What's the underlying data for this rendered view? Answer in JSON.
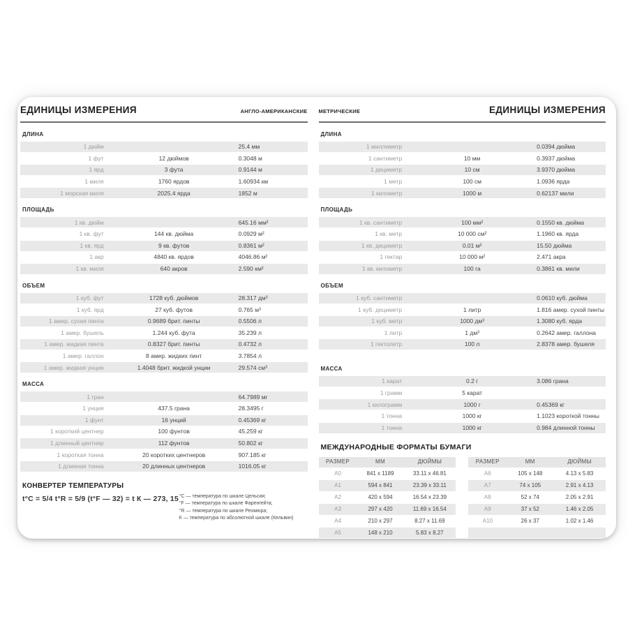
{
  "left": {
    "title": "ЕДИНИЦЫ ИЗМЕРЕНИЯ",
    "subtitle": "АНГЛО-АМЕРИКАНСКИЕ",
    "length": {
      "label": "ДЛИНА",
      "rows": [
        [
          "1 дюйм",
          "",
          "25.4 мм"
        ],
        [
          "1 фут",
          "12 дюймов",
          "0.3048 м"
        ],
        [
          "1 ярд",
          "3 фута",
          "0.9144 м"
        ],
        [
          "1 миля",
          "1760 ярдов",
          "1.60934 км"
        ],
        [
          "1 морская миля",
          "2025.4 ярда",
          "1852 м"
        ]
      ]
    },
    "area": {
      "label": "ПЛОЩАДЬ",
      "rows": [
        [
          "1 кв. дюйм",
          "",
          "645.16 мм²"
        ],
        [
          "1 кв. фут",
          "144 кв. дюйма",
          "0.0929 м²"
        ],
        [
          "1 кв. ярд",
          "9 кв. футов",
          "0.8361 м²"
        ],
        [
          "1 акр",
          "4840 кв. ярдов",
          "4046.86 м²"
        ],
        [
          "1 кв. миля",
          "640 акров",
          "2.590 км²"
        ]
      ]
    },
    "volume": {
      "label": "ОБЪЕМ",
      "rows": [
        [
          "1 куб. фут",
          "1728 куб. дюймов",
          "28.317 дм³"
        ],
        [
          "1 куб. ярд",
          "27 куб. футов",
          "0.765 м³"
        ],
        [
          "1 амер. сухая пинта",
          "0.9689 брит. пинты",
          "0.5506 л"
        ],
        [
          "1 амер. бушель",
          "1.244 куб. фута",
          "35.239 л"
        ],
        [
          "1 амер. жидкая пинта",
          "0.8327 брит. пинты",
          "0.4732 л"
        ],
        [
          "1 амер. галлон",
          "8 амер. жидких пинт",
          "3.7854 л"
        ],
        [
          "1 амер. жидкая унция",
          "1.4048 брит. жидкой унции",
          "29.574 см³"
        ]
      ]
    },
    "mass": {
      "label": "МАССА",
      "rows": [
        [
          "1 гран",
          "",
          "64.7989 мг"
        ],
        [
          "1 унция",
          "437.5 грана",
          "28.3495 г"
        ],
        [
          "1 фунт",
          "16 унций",
          "0.45369 кг"
        ],
        [
          "1 короткий центнер",
          "100 фунтов",
          "45.259 кг"
        ],
        [
          "1 длинный центнер",
          "112 фунтов",
          "50.802 кг"
        ],
        [
          "1 короткая тонна",
          "20 коротких центнеров",
          "907.185 кг"
        ],
        [
          "1 длинная тонна",
          "20 длинных центнеров",
          "1016.05 кг"
        ]
      ]
    },
    "temperature": {
      "heading": "КОНВЕРТЕР ТЕМПЕРАТУРЫ",
      "formula": "t°C = 5/4 t°R = 5/9 (t°F — 32) = t К — 273, 15",
      "notes": [
        "°C — температура по шкале Цельсия;",
        "°F — температура по шкале Фаренгейта;",
        "°R — температура по шкале Реомюра;",
        "К — температура по абсолютной шкале (Кельвин)"
      ]
    }
  },
  "right": {
    "label_small": "МЕТРИЧЕСКИЕ",
    "title": "ЕДИНИЦЫ ИЗМЕРЕНИЯ",
    "length": {
      "label": "ДЛИНА",
      "rows": [
        [
          "1 миллиметр",
          "",
          "0.0394 дюйма"
        ],
        [
          "1 сантиметр",
          "10 мм",
          "0.3937 дюйма"
        ],
        [
          "1 дециметр",
          "10 см",
          "3.9370 дюйма"
        ],
        [
          "1 метр",
          "100 см",
          "1.0936 ярда"
        ],
        [
          "1 километр",
          "1000 м",
          "0.62137 мили"
        ]
      ]
    },
    "area": {
      "label": "ПЛОЩАДЬ",
      "rows": [
        [
          "1 кв. сантиметр",
          "100 мм²",
          "0.1550 кв. дюйма"
        ],
        [
          "1 кв. метр",
          "10 000 см²",
          "1.1960 кв. ярда"
        ],
        [
          "1 кв. дециметр",
          "0.01 м²",
          "15.50 дюйма"
        ],
        [
          "1 гектар",
          "10 000 м²",
          "2.471 акра"
        ],
        [
          "1 кв. километр",
          "100 га",
          "0.3861 кв. мили"
        ]
      ]
    },
    "volume": {
      "label": "ОБЪЕМ",
      "rows": [
        [
          "1 куб. сантиметр",
          "",
          "0.0610 куб. дюйма"
        ],
        [
          "1 куб. дециметр",
          "1 литр",
          "1.816 амер. сухой пинты"
        ],
        [
          "1 куб. метр",
          "1000 дм³",
          "1.3080 куб. ярда"
        ],
        [
          "1 литр",
          "1 дм³",
          "0.2642 амер. галлона"
        ],
        [
          "1 гектолитр",
          "100 л",
          "2.8378 амер. бушеля"
        ]
      ]
    },
    "mass": {
      "label": "МАССА",
      "rows": [
        [
          "1 карат",
          "0.2 г",
          "3.086 грана"
        ],
        [
          "1 грамм",
          "5 карат",
          ""
        ],
        [
          "1 килограмм",
          "1000 г",
          "0.45369 кг"
        ],
        [
          "1 тонна",
          "1000 кг",
          "1.1023 короткой тонны"
        ],
        [
          "1 тонна",
          "1000 кг",
          "0.984 длинной тонны"
        ]
      ]
    },
    "paper": {
      "heading": "МЕЖДУНАРОДНЫЕ ФОРМАТЫ БУМАГИ",
      "columns": [
        "РАЗМЕР",
        "ММ",
        "ДЮЙМЫ"
      ],
      "table_a": [
        [
          "A0",
          "841 x 1189",
          "33.11 x 46.81"
        ],
        [
          "A1",
          "594 x 841",
          "23.39 x 33.11"
        ],
        [
          "A2",
          "420 x 594",
          "16.54 x 23.39"
        ],
        [
          "A3",
          "297 x 420",
          "11.69 x 16.54"
        ],
        [
          "A4",
          "210 x 297",
          "8.27 x 11.69"
        ],
        [
          "A5",
          "148 x 210",
          "5.83 x 8.27"
        ]
      ],
      "table_b": [
        [
          "A6",
          "105 x 148",
          "4.13 x 5.83"
        ],
        [
          "A7",
          "74 x 105",
          "2.91 x 4.13"
        ],
        [
          "A8",
          "52 x 74",
          "2.05 x 2.91"
        ],
        [
          "A9",
          "37 x 52",
          "1.46 x 2.05"
        ],
        [
          "A10",
          "26 x 37",
          "1.02 x 1.46"
        ],
        [
          "",
          "",
          ""
        ]
      ]
    }
  }
}
